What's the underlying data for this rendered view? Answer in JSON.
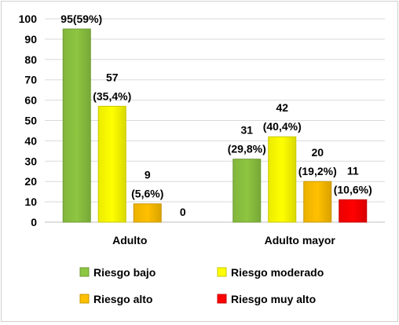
{
  "chart_data": {
    "type": "bar",
    "title": "",
    "xlabel": "",
    "ylabel": "",
    "ylim": [
      0,
      100
    ],
    "yticks": [
      0,
      10,
      20,
      30,
      40,
      50,
      60,
      70,
      80,
      90,
      100
    ],
    "grid": true,
    "legend_position": "bottom",
    "categories": [
      "Adulto",
      "Adulto mayor"
    ],
    "series": [
      {
        "name": "Riesgo bajo",
        "color": "#8dc641",
        "values": [
          95,
          31
        ],
        "labels": [
          "95(59%)",
          "31\n(29,8%)"
        ]
      },
      {
        "name": "Riesgo moderado",
        "color": "#ffff00",
        "values": [
          57,
          42
        ],
        "labels": [
          "57\n(35,4%)",
          "42\n(40,4%)"
        ]
      },
      {
        "name": "Riesgo alto",
        "color": "#ffc000",
        "values": [
          9,
          20
        ],
        "labels": [
          "9\n(5,6%)",
          "20\n(19,2%)"
        ]
      },
      {
        "name": "Riesgo muy alto",
        "color": "#ff0000",
        "values": [
          0,
          11
        ],
        "labels": [
          "0",
          "11\n(10,6%)"
        ]
      }
    ]
  }
}
